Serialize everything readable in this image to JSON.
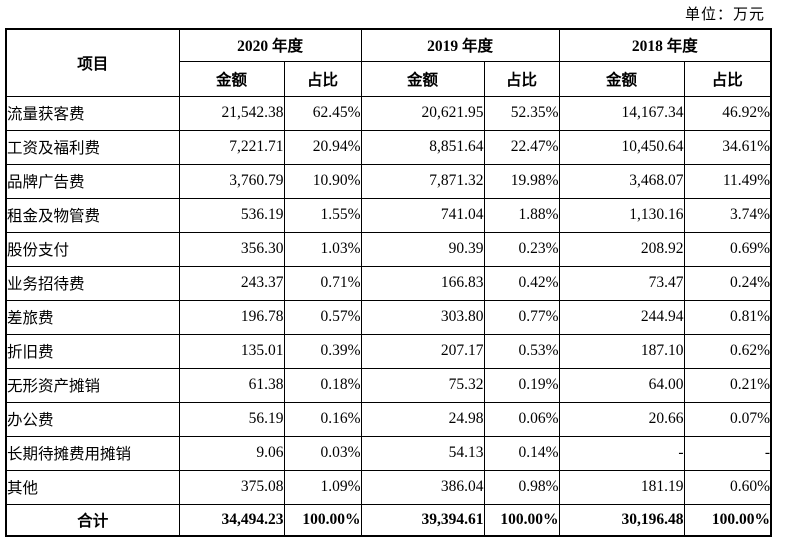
{
  "unit_note": "单位：万元",
  "table": {
    "item_header": "项目",
    "year_groups": [
      {
        "label": "2020 年度"
      },
      {
        "label": "2019 年度"
      },
      {
        "label": "2018 年度"
      }
    ],
    "sub_amount_label": "金额",
    "sub_ratio_label": "占比",
    "rows": [
      [
        "流量获客费",
        "21,542.38",
        "62.45%",
        "20,621.95",
        "52.35%",
        "14,167.34",
        "46.92%"
      ],
      [
        "工资及福利费",
        "7,221.71",
        "20.94%",
        "8,851.64",
        "22.47%",
        "10,450.64",
        "34.61%"
      ],
      [
        "品牌广告费",
        "3,760.79",
        "10.90%",
        "7,871.32",
        "19.98%",
        "3,468.07",
        "11.49%"
      ],
      [
        "租金及物管费",
        "536.19",
        "1.55%",
        "741.04",
        "1.88%",
        "1,130.16",
        "3.74%"
      ],
      [
        "股份支付",
        "356.30",
        "1.03%",
        "90.39",
        "0.23%",
        "208.92",
        "0.69%"
      ],
      [
        "业务招待费",
        "243.37",
        "0.71%",
        "166.83",
        "0.42%",
        "73.47",
        "0.24%"
      ],
      [
        "差旅费",
        "196.78",
        "0.57%",
        "303.80",
        "0.77%",
        "244.94",
        "0.81%"
      ],
      [
        "折旧费",
        "135.01",
        "0.39%",
        "207.17",
        "0.53%",
        "187.10",
        "0.62%"
      ],
      [
        "无形资产摊销",
        "61.38",
        "0.18%",
        "75.32",
        "0.19%",
        "64.00",
        "0.21%"
      ],
      [
        "办公费",
        "56.19",
        "0.16%",
        "24.98",
        "0.06%",
        "20.66",
        "0.07%"
      ],
      [
        "长期待摊费用摊销",
        "9.06",
        "0.03%",
        "54.13",
        "0.14%",
        "-",
        "-"
      ],
      [
        "其他",
        "375.08",
        "1.09%",
        "386.04",
        "0.98%",
        "181.19",
        "0.60%"
      ]
    ],
    "total_row": [
      "合计",
      "34,494.23",
      "100.00%",
      "39,394.61",
      "100.00%",
      "30,196.48",
      "100.00%"
    ]
  }
}
